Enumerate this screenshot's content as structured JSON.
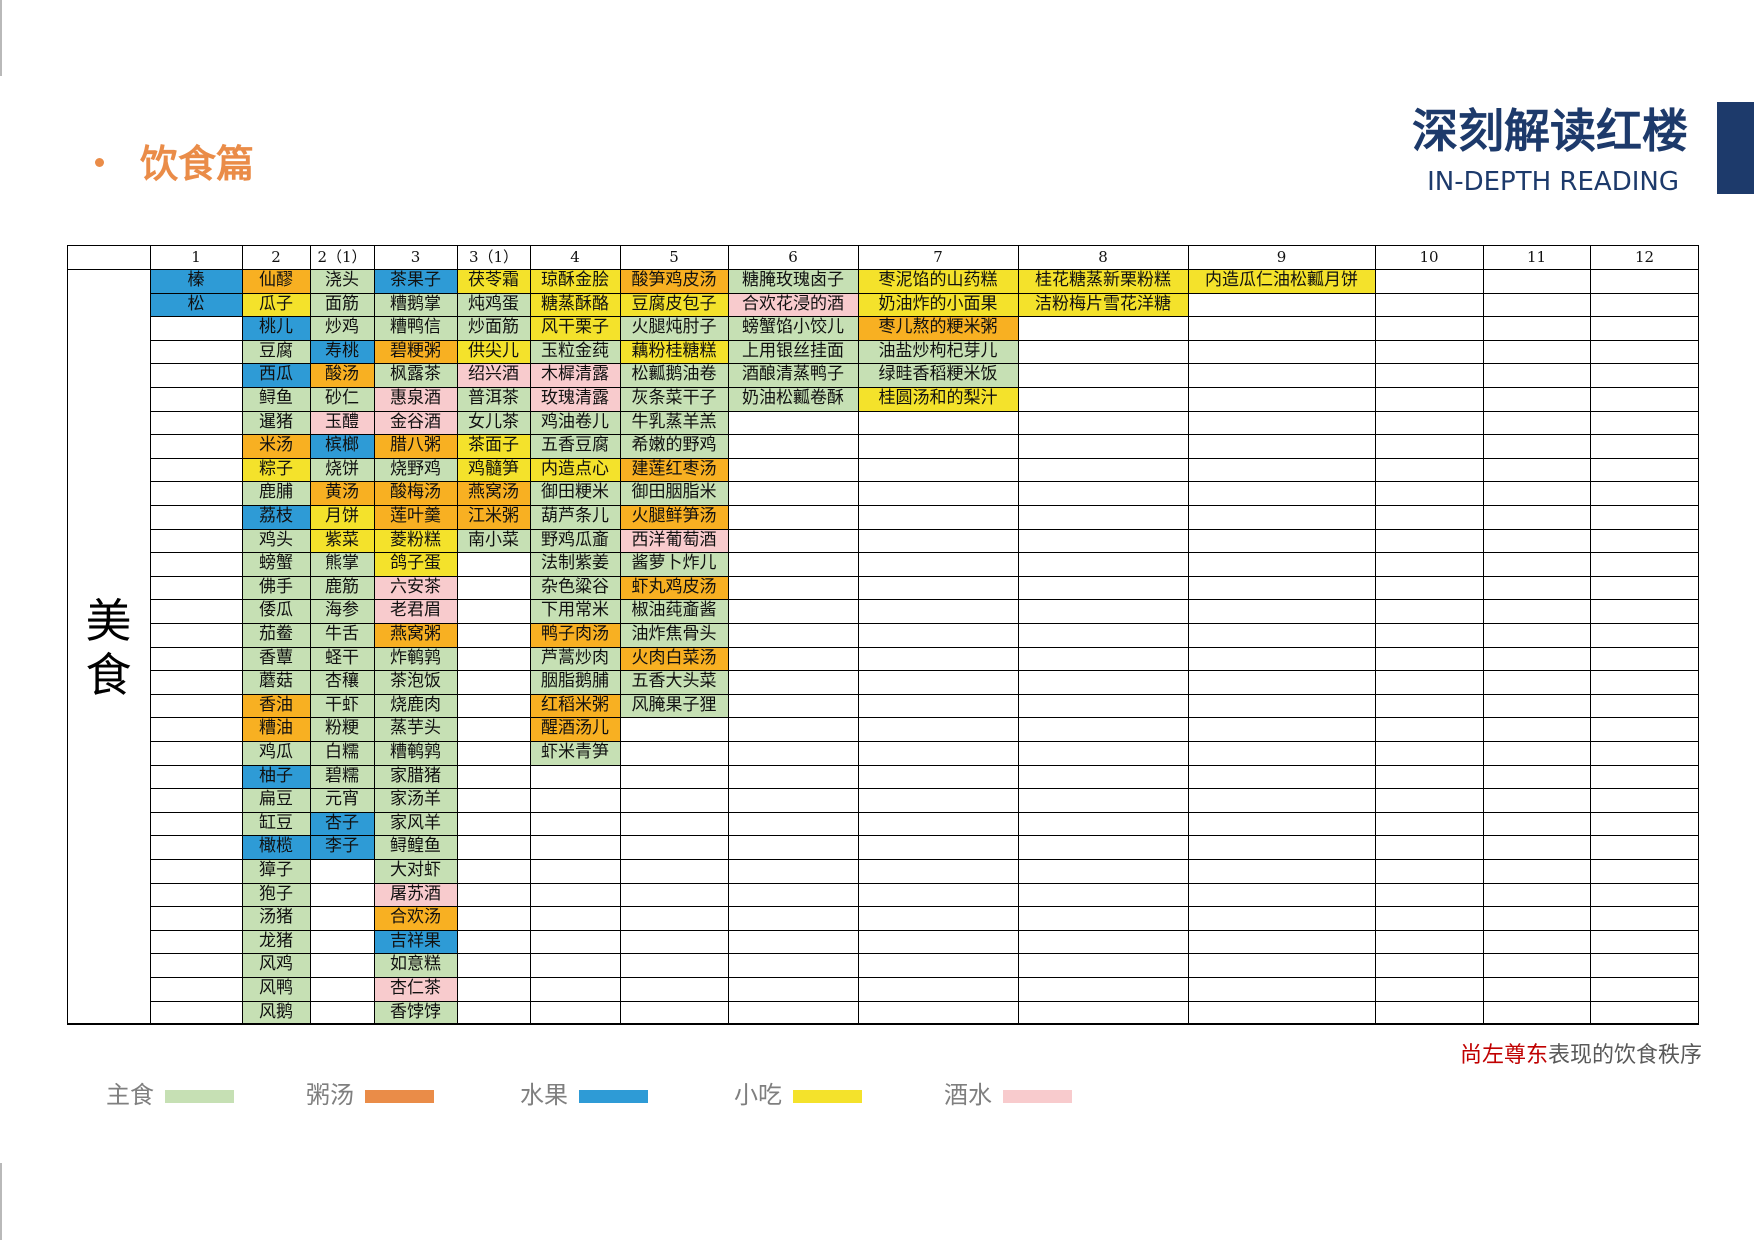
{
  "header": {
    "section_title": "饮食篇",
    "brand_title": "深刻解读红楼",
    "brand_subtitle": "IN-DEPTH READING"
  },
  "table": {
    "section_label": "美食",
    "headers": [
      "1",
      "2",
      "2（1）",
      "3",
      "3（1）",
      "4",
      "5",
      "6",
      "7",
      "8",
      "9",
      "10",
      "11",
      "12"
    ],
    "colors": {
      "G": "#c6e0b4",
      "O": "#f8b022",
      "B": "#2e9bd6",
      "Y": "#f4e22b",
      "P": "#f8cbcd"
    },
    "columns": [
      [
        [
          "榛",
          "B"
        ],
        [
          "松",
          "B"
        ]
      ],
      [
        [
          "仙醪",
          "O"
        ],
        [
          "瓜子",
          "Y"
        ],
        [
          "桃儿",
          "B"
        ],
        [
          "豆腐",
          "G"
        ],
        [
          "西瓜",
          "B"
        ],
        [
          "鲟鱼",
          "G"
        ],
        [
          "暹猪",
          "G"
        ],
        [
          "米汤",
          "O"
        ],
        [
          "粽子",
          "Y"
        ],
        [
          "鹿脯",
          "G"
        ],
        [
          "荔枝",
          "B"
        ],
        [
          "鸡头",
          "G"
        ],
        [
          "螃蟹",
          "G"
        ],
        [
          "佛手",
          "G"
        ],
        [
          "倭瓜",
          "G"
        ],
        [
          "茄鲞",
          "G"
        ],
        [
          "香蕈",
          "G"
        ],
        [
          "蘑菇",
          "G"
        ],
        [
          "香油",
          "O"
        ],
        [
          "糟油",
          "O"
        ],
        [
          "鸡瓜",
          "G"
        ],
        [
          "柚子",
          "B"
        ],
        [
          "扁豆",
          "G"
        ],
        [
          "缸豆",
          "G"
        ],
        [
          "橄榄",
          "B"
        ],
        [
          "獐子",
          "G"
        ],
        [
          "狍子",
          "G"
        ],
        [
          "汤猪",
          "G"
        ],
        [
          "龙猪",
          "G"
        ],
        [
          "风鸡",
          "G"
        ],
        [
          "风鸭",
          "G"
        ],
        [
          "风鹅",
          "G"
        ]
      ],
      [
        [
          "浇头",
          "G"
        ],
        [
          "面筋",
          "G"
        ],
        [
          "炒鸡",
          "G"
        ],
        [
          "寿桃",
          "B"
        ],
        [
          "酸汤",
          "O"
        ],
        [
          "砂仁",
          "G"
        ],
        [
          "玉醴",
          "P"
        ],
        [
          "槟榔",
          "B"
        ],
        [
          "烧饼",
          "G"
        ],
        [
          "黄汤",
          "O"
        ],
        [
          "月饼",
          "Y"
        ],
        [
          "紫菜",
          "Y"
        ],
        [
          "熊掌",
          "G"
        ],
        [
          "鹿筋",
          "G"
        ],
        [
          "海参",
          "G"
        ],
        [
          "牛舌",
          "G"
        ],
        [
          "蛏干",
          "G"
        ],
        [
          "杏穰",
          "G"
        ],
        [
          "干虾",
          "G"
        ],
        [
          "粉粳",
          "G"
        ],
        [
          "白糯",
          "G"
        ],
        [
          "碧糯",
          "G"
        ],
        [
          "元宵",
          "G"
        ],
        [
          "杏子",
          "B"
        ],
        [
          "李子",
          "B"
        ]
      ],
      [
        [
          "茶果子",
          "B"
        ],
        [
          "糟鹅掌",
          "G"
        ],
        [
          "糟鸭信",
          "G"
        ],
        [
          "碧粳粥",
          "O"
        ],
        [
          "枫露茶",
          "G"
        ],
        [
          "惠泉酒",
          "P"
        ],
        [
          "金谷酒",
          "P"
        ],
        [
          "腊八粥",
          "O"
        ],
        [
          "烧野鸡",
          "G"
        ],
        [
          "酸梅汤",
          "O"
        ],
        [
          "莲叶羹",
          "O"
        ],
        [
          "菱粉糕",
          "Y"
        ],
        [
          "鸽子蛋",
          "Y"
        ],
        [
          "六安茶",
          "P"
        ],
        [
          "老君眉",
          "P"
        ],
        [
          "燕窝粥",
          "O"
        ],
        [
          "炸鹌鹑",
          "G"
        ],
        [
          "茶泡饭",
          "G"
        ],
        [
          "烧鹿肉",
          "G"
        ],
        [
          "蒸芋头",
          "G"
        ],
        [
          "糟鹌鹑",
          "G"
        ],
        [
          "家腊猪",
          "G"
        ],
        [
          "家汤羊",
          "G"
        ],
        [
          "家风羊",
          "G"
        ],
        [
          "鲟鳇鱼",
          "G"
        ],
        [
          "大对虾",
          "G"
        ],
        [
          "屠苏酒",
          "P"
        ],
        [
          "合欢汤",
          "O"
        ],
        [
          "吉祥果",
          "B"
        ],
        [
          "如意糕",
          "G"
        ],
        [
          "杏仁茶",
          "P"
        ],
        [
          "香饽饽",
          "G"
        ]
      ],
      [
        [
          "茯苓霜",
          "Y"
        ],
        [
          "炖鸡蛋",
          "G"
        ],
        [
          "炒面筋",
          "G"
        ],
        [
          "供尖儿",
          "Y"
        ],
        [
          "绍兴酒",
          "P"
        ],
        [
          "普洱茶",
          "G"
        ],
        [
          "女儿茶",
          "G"
        ],
        [
          "茶面子",
          "Y"
        ],
        [
          "鸡髓笋",
          "Y"
        ],
        [
          "燕窝汤",
          "O"
        ],
        [
          "江米粥",
          "O"
        ],
        [
          "南小菜",
          "G"
        ]
      ],
      [
        [
          "琼酥金脍",
          "Y"
        ],
        [
          "糖蒸酥酪",
          "Y"
        ],
        [
          "风干栗子",
          "Y"
        ],
        [
          "玉粒金莼",
          "G"
        ],
        [
          "木樨清露",
          "P"
        ],
        [
          "玫瑰清露",
          "P"
        ],
        [
          "鸡油卷儿",
          "G"
        ],
        [
          "五香豆腐",
          "G"
        ],
        [
          "内造点心",
          "Y"
        ],
        [
          "御田粳米",
          "G"
        ],
        [
          "葫芦条儿",
          "G"
        ],
        [
          "野鸡瓜齑",
          "G"
        ],
        [
          "法制紫姜",
          "G"
        ],
        [
          "杂色粱谷",
          "G"
        ],
        [
          "下用常米",
          "G"
        ],
        [
          "鸭子肉汤",
          "O"
        ],
        [
          "芦蒿炒肉",
          "G"
        ],
        [
          "胭脂鹅脯",
          "G"
        ],
        [
          "红稻米粥",
          "O"
        ],
        [
          "醒酒汤儿",
          "O"
        ],
        [
          "虾米青笋",
          "G"
        ]
      ],
      [
        [
          "酸笋鸡皮汤",
          "O"
        ],
        [
          "豆腐皮包子",
          "Y"
        ],
        [
          "火腿炖肘子",
          "G"
        ],
        [
          "藕粉桂糖糕",
          "Y"
        ],
        [
          "松瓤鹅油卷",
          "G"
        ],
        [
          "灰条菜干子",
          "G"
        ],
        [
          "牛乳蒸羊羔",
          "G"
        ],
        [
          "希嫩的野鸡",
          "G"
        ],
        [
          "建莲红枣汤",
          "O"
        ],
        [
          "御田胭脂米",
          "G"
        ],
        [
          "火腿鲜笋汤",
          "O"
        ],
        [
          "西洋葡萄酒",
          "P"
        ],
        [
          "酱萝卜炸儿",
          "G"
        ],
        [
          "虾丸鸡皮汤",
          "O"
        ],
        [
          "椒油莼齑酱",
          "G"
        ],
        [
          "油炸焦骨头",
          "G"
        ],
        [
          "火肉白菜汤",
          "O"
        ],
        [
          "五香大头菜",
          "G"
        ],
        [
          "风腌果子狸",
          "G"
        ]
      ],
      [
        [
          "糖腌玫瑰卤子",
          "G"
        ],
        [
          "合欢花浸的酒",
          "P"
        ],
        [
          "螃蟹馅小饺儿",
          "G"
        ],
        [
          "上用银丝挂面",
          "G"
        ],
        [
          "酒酿清蒸鸭子",
          "G"
        ],
        [
          "奶油松瓤卷酥",
          "G"
        ]
      ],
      [
        [
          "枣泥馅的山药糕",
          "Y"
        ],
        [
          "奶油炸的小面果",
          "Y"
        ],
        [
          "枣儿熬的粳米粥",
          "O"
        ],
        [
          "油盐炒枸杞芽儿",
          "G"
        ],
        [
          "绿畦香稻粳米饭",
          "G"
        ],
        [
          "桂圆汤和的梨汁",
          "Y"
        ]
      ],
      [
        [
          "桂花糖蒸新栗粉糕",
          "Y"
        ],
        [
          "洁粉梅片雪花洋糖",
          "Y"
        ]
      ],
      [
        [
          "内造瓜仁油松瓤月饼",
          "Y"
        ]
      ],
      [],
      [],
      []
    ]
  },
  "caption": {
    "highlight": "尚左尊东",
    "rest": "表现的饮食秩序"
  },
  "legend": [
    {
      "label": "主食",
      "color": "#c6e0b4"
    },
    {
      "label": "粥汤",
      "color": "#ea8c48"
    },
    {
      "label": "水果",
      "color": "#2e9bd6"
    },
    {
      "label": "小吃",
      "color": "#f4e22b"
    },
    {
      "label": "酒水",
      "color": "#f8cbcd"
    }
  ]
}
